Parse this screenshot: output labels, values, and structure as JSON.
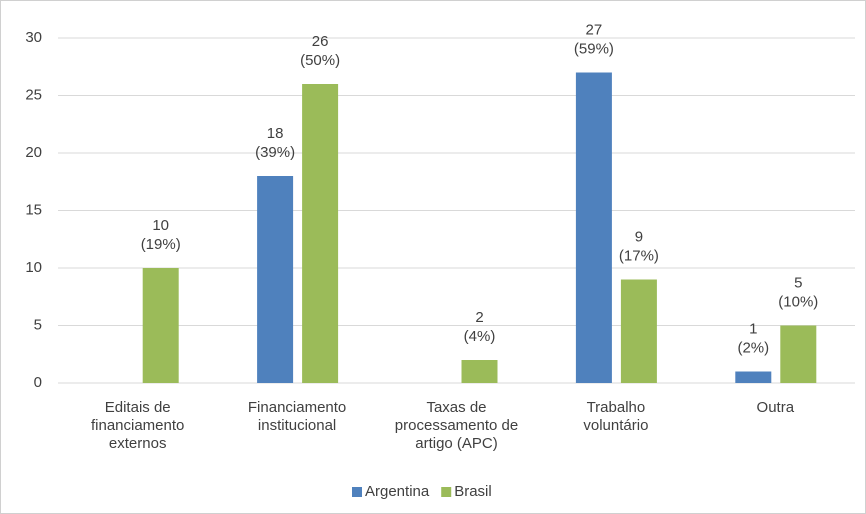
{
  "chart_data": {
    "type": "bar",
    "categories": [
      [
        "Editais de",
        "financiamento",
        "externos"
      ],
      [
        "Financiamento",
        "institucional"
      ],
      [
        "Taxas de",
        "processamento de",
        "artigo (APC)"
      ],
      [
        "Trabalho",
        "voluntário"
      ],
      [
        "Outra"
      ]
    ],
    "series": [
      {
        "name": "Argentina",
        "color": "#4f81bd",
        "values": [
          null,
          18,
          null,
          27,
          1
        ],
        "value_labels": [
          null,
          "18",
          null,
          "27",
          "1"
        ],
        "percent_labels": [
          null,
          "(39%)",
          null,
          "(59%)",
          "(2%)"
        ]
      },
      {
        "name": "Brasil",
        "color": "#9bbb59",
        "values": [
          10,
          26,
          2,
          9,
          5
        ],
        "value_labels": [
          "10",
          "26",
          "2",
          "9",
          "5"
        ],
        "percent_labels": [
          "(19%)",
          "(50%)",
          "(4%)",
          "(17%)",
          "(10%)"
        ]
      }
    ],
    "ylim": [
      0,
      30
    ],
    "yticks": [
      0,
      5,
      10,
      15,
      20,
      25,
      30
    ],
    "grid": true,
    "legend": "bottom"
  }
}
